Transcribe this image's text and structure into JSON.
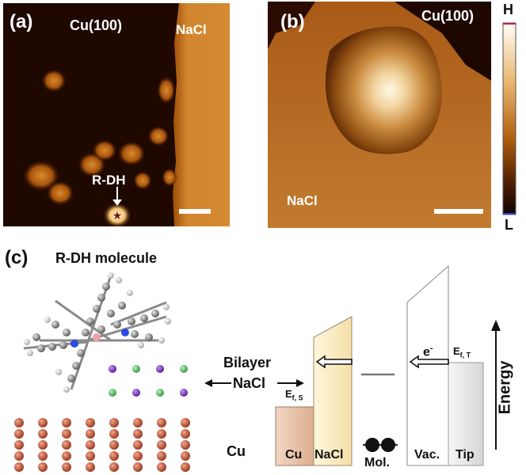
{
  "panel_a": {
    "label": "(a)",
    "substrate": "Cu(100)",
    "island": "NaCl",
    "molecule_label": "R-DH"
  },
  "panel_b": {
    "label": "(b)",
    "substrate": "Cu(100)",
    "island": "NaCl"
  },
  "colorbar": {
    "high": "H",
    "low": "L"
  },
  "panel_c": {
    "label": "(c)",
    "title": "R-DH molecule",
    "bilayer_line1": "Bilayer",
    "bilayer_line2": "NaCl",
    "cu_label": "Cu",
    "ef_s_main": "E",
    "ef_s_sub": "f, S",
    "ef_t_main": "E",
    "ef_t_sub": "f, T",
    "electron_main": "e",
    "electron_sup": "-",
    "energy_label": "Energy",
    "blocks": {
      "cu": "Cu",
      "nacl": "NaCl",
      "mol": "Mol.",
      "vac": "Vac.",
      "tip": "Tip"
    }
  },
  "colors": {
    "stm_dark": "#1a0700",
    "stm_mid": "#b35a0c",
    "stm_bright": "#fff4d6",
    "cu_atom": "#d9765a",
    "na_atom": "#8e44c8",
    "cl_atom": "#6cd17a",
    "cu_block": "#e9c3a8",
    "nacl_block": "#fbeac2"
  }
}
